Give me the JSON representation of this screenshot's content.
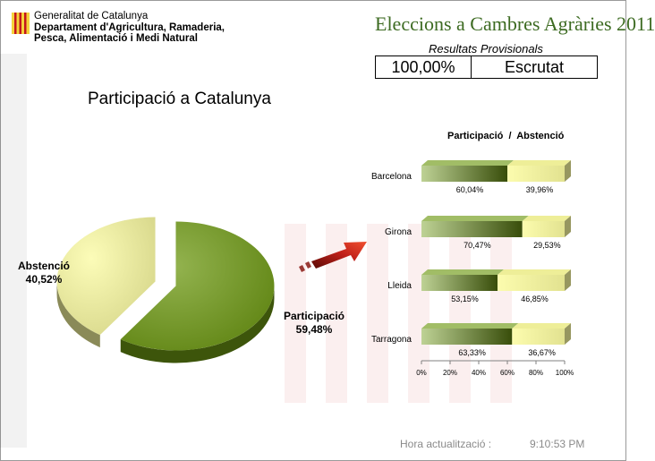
{
  "header": {
    "org_line1": "Generalitat de Catalunya",
    "org_line2": "Departament d'Agricultura, Ramaderia,",
    "org_line3": "Pesca, Alimentació i Medi Natural",
    "event_title": "Eleccions a Cambres Agràries 2011",
    "subtitle": "Resultats Provisionals",
    "status_percent": "100,00%",
    "status_text": "Escrutat"
  },
  "footer": {
    "update_label": "Hora actualització :",
    "update_time": "9:10:53 PM"
  },
  "colors": {
    "participation": "#6f9a14",
    "abstention": "#fbfba0",
    "arrow": "#c0201a"
  },
  "chart_data": [
    {
      "type": "pie",
      "title": "Participació a Catalunya",
      "slices": [
        {
          "name": "Participació",
          "value": 59.48,
          "label": "59,48%"
        },
        {
          "name": "Abstenció",
          "value": 40.52,
          "label": "40,52%"
        }
      ]
    },
    {
      "type": "bar",
      "orientation": "horizontal",
      "stacked": true,
      "title": "Participació  /  Abstenció",
      "categories": [
        "Barcelona",
        "Girona",
        "Lleida",
        "Tarragona"
      ],
      "series": [
        {
          "values": [
            60.04,
            70.47,
            53.15,
            63.33
          ],
          "labels": [
            "60,04%",
            "70,47%",
            "53,15%",
            "63,33%"
          ]
        },
        {
          "values": [
            39.96,
            29.53,
            46.85,
            36.67
          ],
          "labels": [
            "39,96%",
            "29,53%",
            "46,85%",
            "36,67%"
          ]
        }
      ],
      "xlim": [
        0,
        100
      ],
      "xticks": [
        "0%",
        "20%",
        "40%",
        "60%",
        "80%",
        "100%"
      ]
    }
  ]
}
